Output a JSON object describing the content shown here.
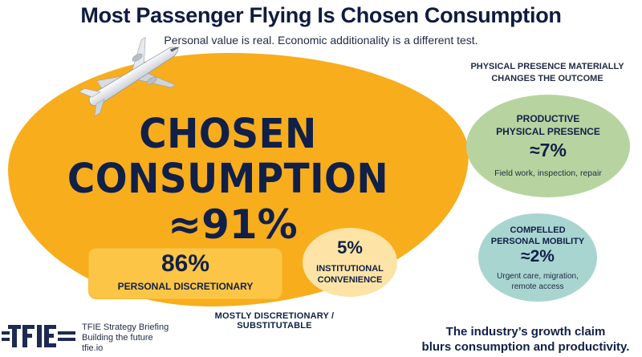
{
  "header": {
    "title": "Most Passenger Flying Is Chosen Consumption",
    "subtitle": "Personal value is real. Economic additionality is a different test."
  },
  "main": {
    "label_line1": "CHOSEN",
    "label_line2": "CONSUMPTION",
    "share": "≈91%",
    "personal": {
      "value": "86%",
      "label": "PERSONAL DISCRETIONARY"
    },
    "institutional": {
      "value": "5%",
      "label_line1": "INSTITUTIONAL",
      "label_line2": "CONVENIENCE"
    },
    "footer_label": "MOSTLY DISCRETIONARY / SUBSTITUTABLE"
  },
  "side": {
    "title_line1": "PHYSICAL PRESENCE MATERIALLY",
    "title_line2": "CHANGES THE OUTCOME",
    "productive": {
      "title_line1": "PRODUCTIVE",
      "title_line2": "PHYSICAL PRESENCE",
      "value": "≈7%",
      "desc": "Field work, inspection, repair"
    },
    "compelled": {
      "title_line1": "COMPELLED",
      "title_line2": "PERSONAL MOBILITY",
      "value": "≈2%",
      "desc_line1": "Urgent care, migration,",
      "desc_line2": "remote access"
    }
  },
  "footer": {
    "logo_text": "TFIE",
    "brand_line1": "TFIE Strategy Briefing",
    "brand_line2": "Building the future",
    "brand_line3": "tfie.io",
    "claim_line1": "The industry’s growth claim",
    "claim_line2": "blurs consumption and productivity."
  },
  "colors": {
    "navy": "#102048",
    "consumption": "#f8ad1c",
    "personal_box": "#fcc545",
    "institutional": "#fde4a6",
    "productive": "#b7d4a0",
    "compelled": "#a9d5d0"
  },
  "icons": [
    "airplane-icon",
    "tfie-logo"
  ]
}
